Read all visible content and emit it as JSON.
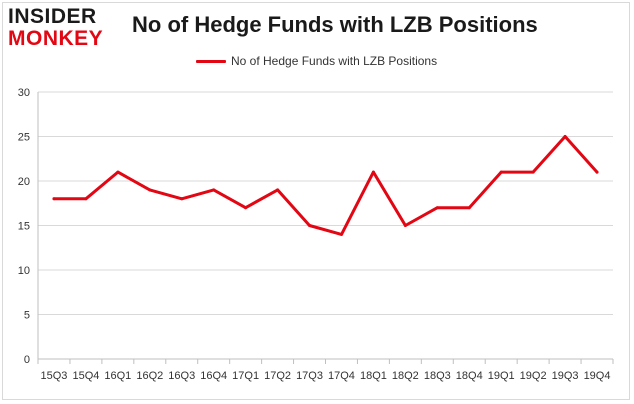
{
  "logo": {
    "line1": "INSIDER",
    "line2": "MONKEY"
  },
  "colors": {
    "series": "#e30613",
    "grid": "#d9d9d9",
    "axis": "#bfbfbf",
    "text": "#333333"
  },
  "chart_data": {
    "type": "line",
    "title": "No of Hedge Funds with LZB Positions",
    "xlabel": "",
    "ylabel": "",
    "ylim": [
      0,
      30
    ],
    "yticks": [
      0,
      5,
      10,
      15,
      20,
      25,
      30
    ],
    "grid": true,
    "legend_position": "top",
    "categories": [
      "15Q3",
      "15Q4",
      "16Q1",
      "16Q2",
      "16Q3",
      "16Q4",
      "17Q1",
      "17Q2",
      "17Q3",
      "17Q4",
      "18Q1",
      "18Q2",
      "18Q3",
      "18Q4",
      "19Q1",
      "19Q2",
      "19Q3",
      "19Q4"
    ],
    "series": [
      {
        "name": "No of Hedge Funds with LZB Positions",
        "values": [
          18,
          18,
          21,
          19,
          18,
          19,
          17,
          19,
          15,
          14,
          21,
          15,
          17,
          17,
          21,
          21,
          25,
          21
        ]
      }
    ]
  }
}
